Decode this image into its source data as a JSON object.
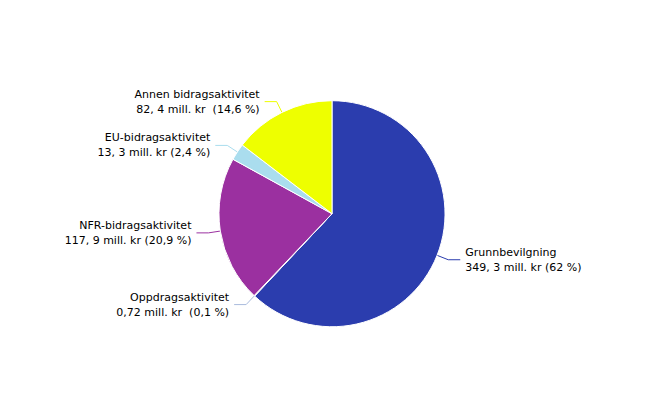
{
  "chart_data": {
    "type": "pie",
    "categories": [
      "Grunnbevilgning\n349, 3 mill. kr (62 %)",
      "Oppdragsaktivitet\n0,72 mill. kr  (0,1 %)",
      "NFR-bidragsaktivitet\n117, 9 mill. kr (20,9 %)",
      "EU-bidragsaktivitet\n13, 3 mill. kr (2,4 %)",
      "Annen bidragsaktivitet\n82, 4 mill. kr  (14,6 %)"
    ],
    "values": [
      62.0,
      0.1,
      20.9,
      2.4,
      14.6
    ],
    "colors": [
      "#2B3DAE",
      "#AABBDD",
      "#9B30A0",
      "#AADDEE",
      "#EEFF00"
    ]
  }
}
